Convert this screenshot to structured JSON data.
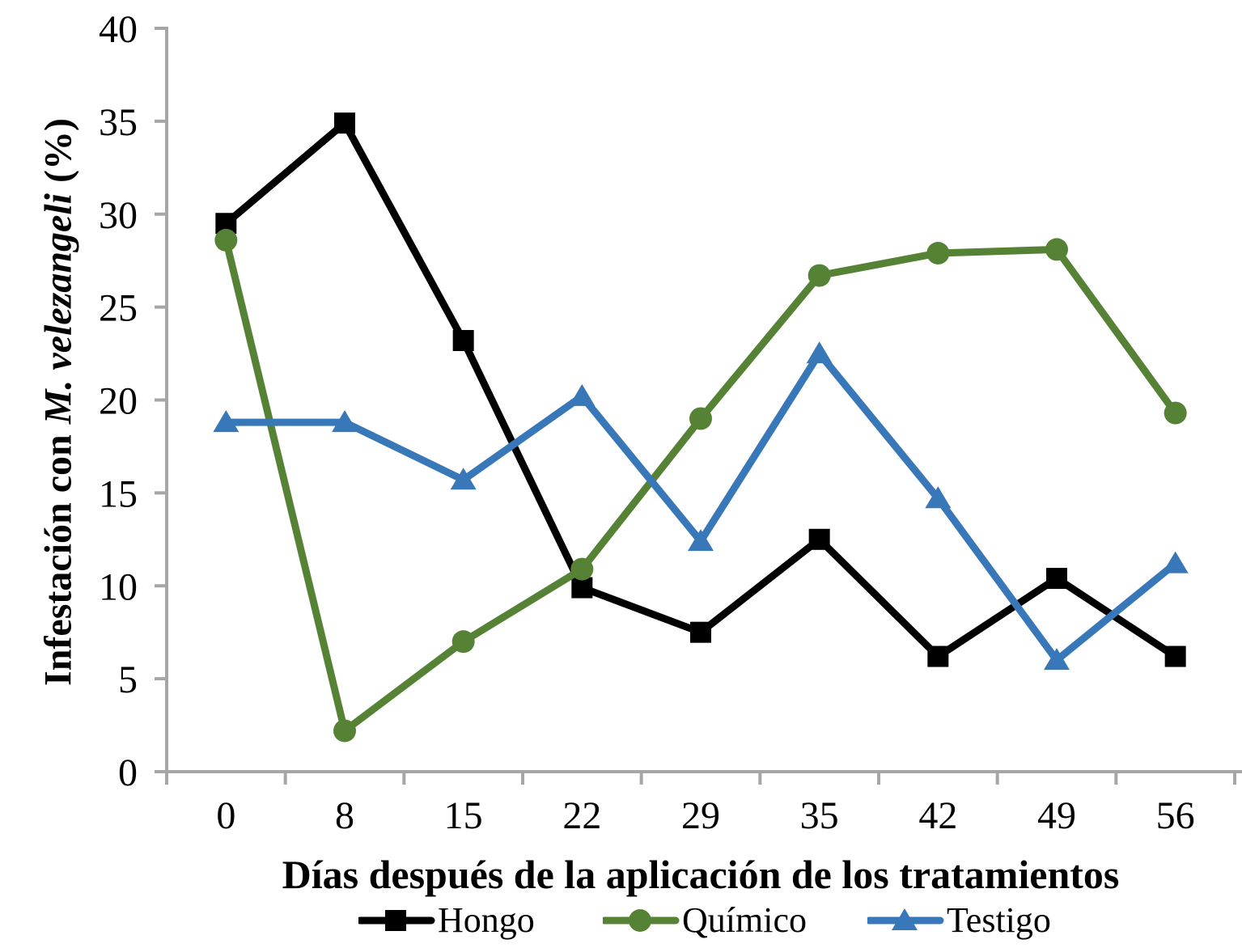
{
  "chart_data": {
    "type": "line",
    "title": "",
    "xlabel": "Días después de la aplicación de los tratamientos",
    "ylabel": "Infestación con M. velezangeli (%)",
    "ylabel_parts": {
      "prefix": "Infestación con",
      "species": "M. velezangeli",
      "suffix": "(%)"
    },
    "categories": [
      "0",
      "8",
      "15",
      "22",
      "29",
      "35",
      "42",
      "49",
      "56"
    ],
    "y_ticks": [
      "0",
      "5",
      "10",
      "15",
      "20",
      "25",
      "30",
      "35",
      "40"
    ],
    "ylim": [
      0,
      40
    ],
    "grid": false,
    "legend_position": "bottom",
    "axis_color": "#A6A6A6",
    "text_color": "#000000",
    "series": [
      {
        "name": "Hongo",
        "marker": "square",
        "color": "#000000",
        "values": [
          29.5,
          34.9,
          23.2,
          9.9,
          7.5,
          12.5,
          6.2,
          10.4,
          6.2
        ]
      },
      {
        "name": "Químico",
        "marker": "circle",
        "color": "#568235",
        "values": [
          28.6,
          2.2,
          7.0,
          10.9,
          19.0,
          26.7,
          27.9,
          28.1,
          19.3
        ]
      },
      {
        "name": "Testigo",
        "marker": "triangle",
        "color": "#3877B8",
        "values": [
          18.8,
          18.8,
          15.7,
          20.2,
          12.4,
          22.5,
          14.7,
          6.0,
          11.2
        ]
      }
    ]
  }
}
